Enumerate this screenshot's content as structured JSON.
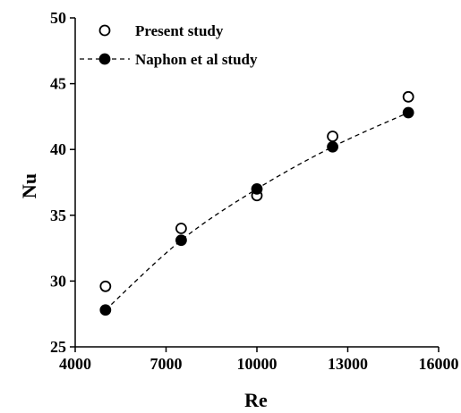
{
  "chart_data": {
    "type": "scatter",
    "xlabel": "Re",
    "ylabel": "Nu",
    "xlim": [
      4000,
      16000
    ],
    "ylim": [
      25,
      50
    ],
    "xticks": [
      4000,
      7000,
      10000,
      13000,
      16000
    ],
    "yticks": [
      25,
      30,
      35,
      40,
      45,
      50
    ],
    "grid": false,
    "legend_position": "top-left",
    "series": [
      {
        "name": "Present study",
        "marker": "open-circle",
        "line": "none",
        "color": "#000000",
        "x": [
          5000,
          7500,
          10000,
          12500,
          15000
        ],
        "y": [
          29.6,
          34.0,
          36.5,
          41.0,
          44.0
        ]
      },
      {
        "name": "Naphon et al study",
        "marker": "filled-circle",
        "line": "dashed",
        "color": "#000000",
        "x": [
          5000,
          7500,
          10000,
          12500,
          15000
        ],
        "y": [
          27.8,
          33.1,
          37.0,
          40.2,
          42.8
        ]
      }
    ]
  }
}
